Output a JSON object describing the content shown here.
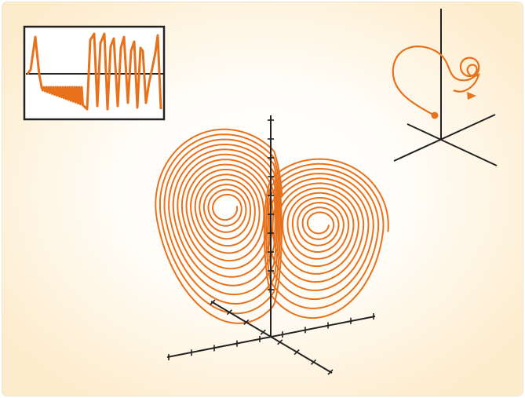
{
  "figure": {
    "background_inner": "#ffffff",
    "background_outer": "#fdeccc",
    "curve_color": "#e8711c",
    "axis_color": "#222222",
    "inset_frame_color": "#222222"
  },
  "icons": {
    "time_series_inset": "time-series-waveform",
    "butterfly": "lorenz-butterfly-attractor",
    "corner_trajectory": "spiral-trajectory-with-start-dot-and-arrow"
  }
}
